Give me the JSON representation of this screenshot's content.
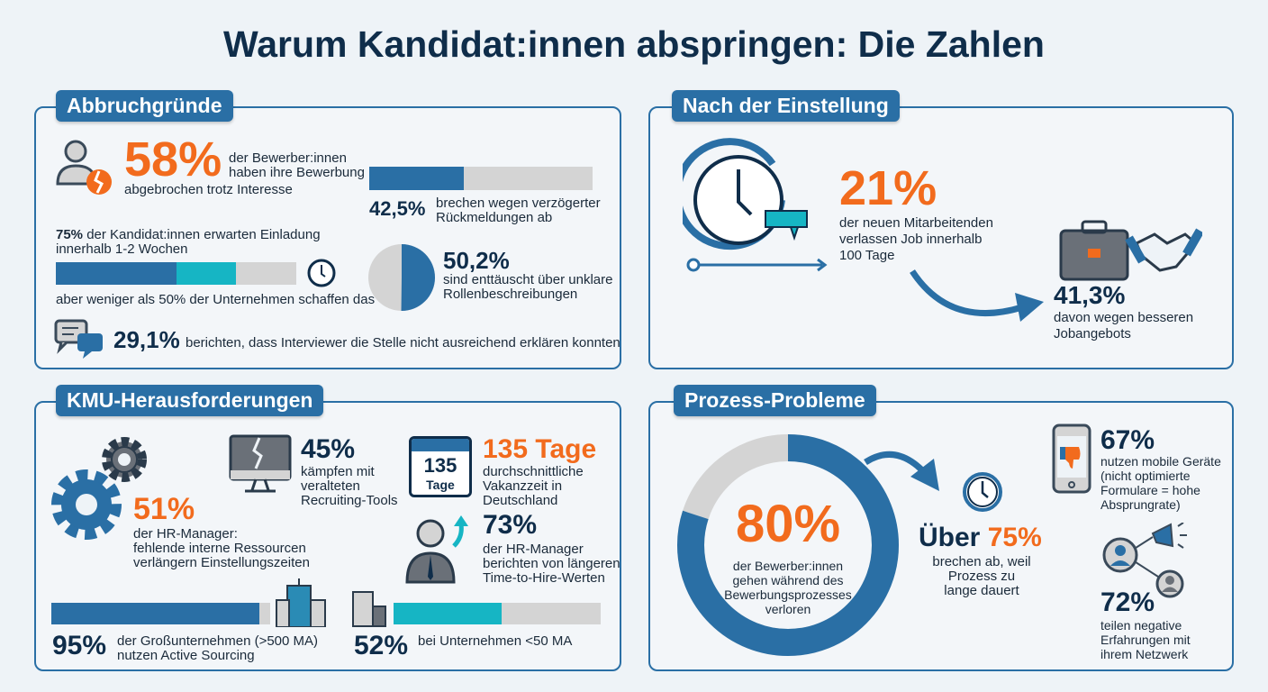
{
  "title": "Warum Kandidat:innen abspringen: Die Zahlen",
  "colors": {
    "navy": "#0f2d4a",
    "blue": "#2a6fa5",
    "orange": "#f26b1d",
    "teal": "#16b5c4",
    "gray": "#d4d4d4"
  },
  "abbruch": {
    "title": "Abbruchgründe",
    "s58": {
      "value": "58%",
      "text1": "der Bewerber:innen",
      "text2": "haben ihre Bewerbung",
      "text3": "abgebrochen trotz Interesse",
      "icon": "user-broken-heart-icon"
    },
    "s425": {
      "value": "42,5%",
      "text1": "brechen wegen verzögerter",
      "text2": "Rückmeldungen ab",
      "fill": 42.5
    },
    "s75": {
      "value": "75%",
      "text1": " der Kandidat:innen erwarten Einladung",
      "text2": "innerhalb 1-2 Wochen",
      "text3": "aber weniger als 50% der Unternehmen schaffen das",
      "fill_blue": 50,
      "fill_teal": 25,
      "icon": "clock-icon"
    },
    "s502": {
      "value": "50,2%",
      "text1": "sind enttäuscht über unklare",
      "text2": "Rollenbeschreibungen",
      "fill": 50.2
    },
    "s291": {
      "value": "29,1%",
      "text": "berichten, dass Interviewer die Stelle nicht ausreichend erklären konnten",
      "icon": "chat-bubbles-icon"
    }
  },
  "nach": {
    "title": "Nach der Einstellung",
    "s21": {
      "value": "21%",
      "text1": "der neuen Mitarbeitenden",
      "text2": "verlassen Job innerhalb",
      "text3": "100 Tage",
      "icon": "clock-timeline-icon"
    },
    "s413": {
      "value": "41,3%",
      "text1": "davon wegen besseren",
      "text2": "Jobangebots",
      "icon": "briefcase-handshake-icon"
    }
  },
  "kmu": {
    "title": "KMU-Herausforderungen",
    "s51": {
      "value": "51%",
      "text1": "der HR-Manager:",
      "text2": "fehlende interne Ressourcen",
      "text3": "verlängern Einstellungszeiten",
      "icon": "gears-icon"
    },
    "s45": {
      "value": "45%",
      "text1": "kämpfen mit",
      "text2": "veralteten",
      "text3": "Recruiting-Tools",
      "icon": "broken-monitor-icon"
    },
    "s135": {
      "value": "135 Tage",
      "cal1": "135",
      "cal2": "Tage",
      "text1": "durchschnittliche",
      "text2": "Vakanzzeit in",
      "text3": "Deutschland",
      "icon": "calendar-icon"
    },
    "s73": {
      "value": "73%",
      "text1": "der HR-Manager",
      "text2": "berichten von längeren",
      "text3": "Time-to-Hire-Werten",
      "icon": "manager-arrow-up-icon"
    },
    "s95": {
      "value": "95%",
      "text1": "der Großunternehmen (>500 MA)",
      "text2": "nutzen Active Sourcing",
      "fill": 95
    },
    "s52": {
      "value": "52%",
      "text1": "bei Unternehmen <50 MA",
      "fill": 52
    }
  },
  "prozess": {
    "title": "Prozess-Probleme",
    "s80": {
      "value": "80%",
      "text1": "der Bewerber:innen",
      "text2": "gehen während des",
      "text3": "Bewerbungsprozesses",
      "text4": "verloren",
      "fill": 80
    },
    "s75": {
      "prefix": "Über",
      "value": "75%",
      "text1": "brechen ab, weil",
      "text2": "Prozess zu",
      "text3": "lange dauert"
    },
    "s67": {
      "value": "67%",
      "text1": "nutzen mobile Geräte",
      "text2": "(nicht optimierte",
      "text3": "Formulare = hohe",
      "text4": "Absprungrate)",
      "icon": "phone-thumbs-down-icon"
    },
    "s72": {
      "value": "72%",
      "text1": "teilen negative",
      "text2": "Erfahrungen mit",
      "text3": "ihrem Netzwerk",
      "icon": "network-megaphone-icon"
    }
  }
}
